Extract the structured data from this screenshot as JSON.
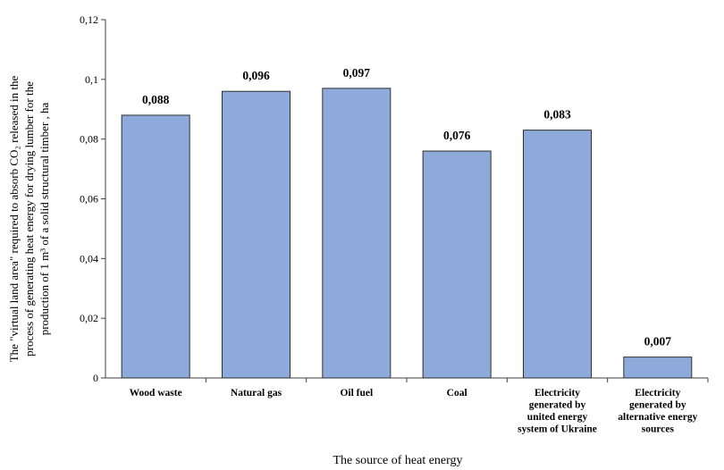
{
  "chart_data": {
    "type": "bar",
    "categories": [
      [
        "Wood waste"
      ],
      [
        "Natural gas"
      ],
      [
        "Oil fuel"
      ],
      [
        "Coal"
      ],
      [
        "Electricity",
        "generated by",
        "united energy",
        "system of Ukraine"
      ],
      [
        "Electricity",
        "generated by",
        "alternative energy",
        "sources"
      ]
    ],
    "values": [
      0.088,
      0.096,
      0.097,
      0.076,
      0.083,
      0.007
    ],
    "value_labels": [
      "0,088",
      "0,096",
      "0,097",
      "0,076",
      "0,083",
      "0,007"
    ],
    "xlabel": "The source of heat energy",
    "ylabel_lines": [
      "The \"virtual land area\" required to absorb CO₂ released in the",
      "process of generating heat energy for drying lumber for the",
      "production of 1 m³ of a solid structural timber , ha"
    ],
    "ylim": [
      0,
      0.12
    ],
    "yticks": [
      0,
      0.02,
      0.04,
      0.06,
      0.08,
      0.1,
      0.12
    ],
    "ytick_labels": [
      "0",
      "0,02",
      "0,04",
      "0,06",
      "0,08",
      "0,1",
      "0,12"
    ],
    "grid": false,
    "colors": {
      "bar_fill": "#8eaadb",
      "bar_stroke": "#2f2f2f",
      "axis": "#404040"
    }
  }
}
